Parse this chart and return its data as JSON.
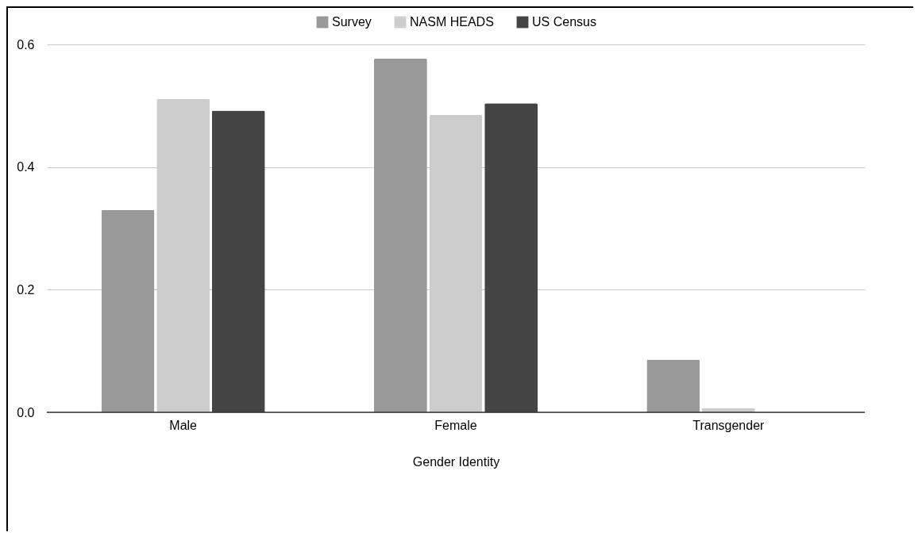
{
  "chart_data": {
    "type": "bar",
    "xlabel": "Gender Identity",
    "categories": [
      "Male",
      "Female",
      "Transgender"
    ],
    "series": [
      {
        "name": "Survey",
        "color": "#999999",
        "values": [
          0.33,
          0.577,
          0.086
        ]
      },
      {
        "name": "NASM HEADS",
        "color": "#cccccc",
        "values": [
          0.511,
          0.485,
          0.007
        ]
      },
      {
        "name": "US Census",
        "color": "#444444",
        "values": [
          0.492,
          0.504,
          0
        ]
      }
    ],
    "ylim": [
      0,
      0.6
    ],
    "yticks": [
      {
        "value": 0,
        "label": "0.0"
      },
      {
        "value": 0.2,
        "label": "0.2"
      },
      {
        "value": 0.4,
        "label": "0.4"
      },
      {
        "value": 0.6,
        "label": "0.6"
      }
    ],
    "grid": "y",
    "legend": "top"
  }
}
